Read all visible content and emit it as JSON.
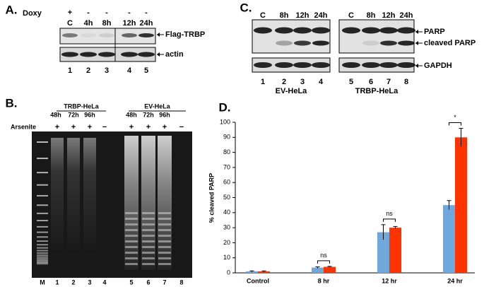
{
  "panel_a": {
    "label": "A.",
    "row_label": "Doxy",
    "treatment": [
      "+",
      "-",
      "-",
      "-",
      "-"
    ],
    "lanes": [
      "C",
      "4h",
      "8h",
      "12h",
      "24h"
    ],
    "bands": [
      "Flag-TRBP",
      "actin"
    ],
    "lane_numbers": [
      "1",
      "2",
      "3",
      "4",
      "5"
    ]
  },
  "panel_b": {
    "label": "B.",
    "groups": [
      {
        "name": "TRBP-HeLa",
        "times": [
          "48h",
          "72h",
          "96h"
        ]
      },
      {
        "name": "EV-HeLa",
        "times": [
          "48h",
          "72h",
          "96h"
        ]
      }
    ],
    "row_label": "Arsenite",
    "treatment": [
      "+",
      "+",
      "+",
      "−",
      "+",
      "+",
      "+",
      "−"
    ],
    "lanes": [
      "M",
      "1",
      "2",
      "3",
      "4",
      "5",
      "6",
      "7",
      "8"
    ]
  },
  "panel_c": {
    "label": "C.",
    "groups": [
      {
        "name": "EV-HeLa",
        "lanes": [
          "C",
          "8h",
          "12h",
          "24h"
        ],
        "lane_numbers": [
          "1",
          "2",
          "3",
          "4"
        ]
      },
      {
        "name": "TRBP-HeLa",
        "lanes": [
          "C",
          "8h",
          "12h",
          "24h"
        ],
        "lane_numbers": [
          "5",
          "6",
          "7",
          "8"
        ]
      }
    ],
    "bands": [
      "PARP",
      "cleaved PARP",
      "GAPDH"
    ]
  },
  "chart_data": {
    "type": "bar",
    "label": "D.",
    "y_label": "% cleaved PARP",
    "categories": [
      "Control",
      "8 hr",
      "12 hr",
      "24 hr"
    ],
    "series": [
      {
        "color": "#6fa8dc",
        "values": [
          1,
          3.5,
          27,
          45
        ],
        "errors": [
          0.3,
          0.5,
          5,
          3
        ]
      },
      {
        "color": "#ff3300",
        "values": [
          1,
          4,
          30,
          90
        ],
        "errors": [
          0.3,
          0.3,
          0.8,
          6
        ]
      }
    ],
    "significance": [
      null,
      "ns",
      "ns",
      "*"
    ],
    "ylim": [
      0,
      100
    ],
    "yticks": [
      0,
      10,
      20,
      30,
      40,
      50,
      60,
      70,
      80,
      90,
      100
    ]
  }
}
